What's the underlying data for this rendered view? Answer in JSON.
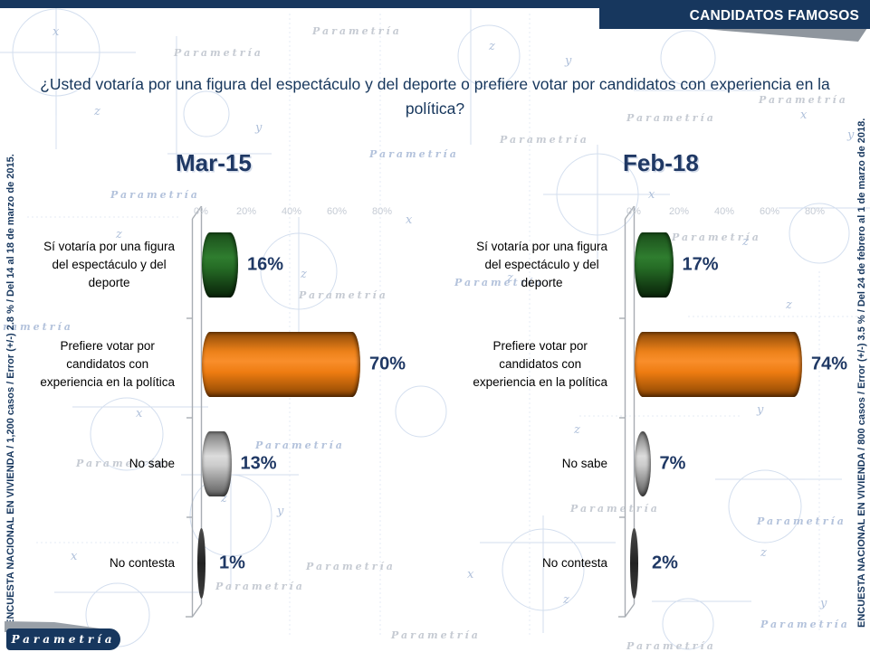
{
  "banner": {
    "label": "CANDIDATOS FAMOSOS"
  },
  "title": "¿Usted votaría por una figura del espectáculo y del deporte o prefiere votar por candidatos con experiencia en la política?",
  "logo": "Parametría",
  "watermark": "Parametría",
  "watermark_letters": [
    "x",
    "y",
    "z"
  ],
  "colors": {
    "navy": "#17375e",
    "value_label": "#1f3864",
    "tick_label": "#c5cbd4"
  },
  "chart_data": [
    {
      "type": "bar",
      "orientation": "horizontal",
      "title": "Mar-15",
      "categories": [
        "Sí votaría por una figura del espectáculo y del deporte",
        "Prefiere votar por candidatos con experiencia en la política",
        "No sabe",
        "No contesta"
      ],
      "categories_display": [
        "Sí votaría por una figura\ndel espectáculo y del\ndeporte",
        "Prefiere votar por\ncandidatos con\nexperiencia en la política",
        "No sabe",
        "No contesta"
      ],
      "values": [
        16,
        70,
        13,
        1
      ],
      "value_labels": [
        "16%",
        "70%",
        "13%",
        "1%"
      ],
      "bar_colors": [
        "#1e7a1e",
        "#f5821e",
        "#bdbdbd",
        "#333333"
      ],
      "x_ticks": [
        "0%",
        "20%",
        "40%",
        "60%",
        "80%"
      ],
      "xlim": [
        0,
        100
      ],
      "grid": false,
      "legend": "none",
      "survey_note": "ENCUESTA NACIONAL EN VIVIENDA / 1,200 casos / Error (+/-) 2.8 % / Del 14 al 18 de marzo de 2015."
    },
    {
      "type": "bar",
      "orientation": "horizontal",
      "title": "Feb-18",
      "categories": [
        "Sí votaría por una figura del espectáculo y del deporte",
        "Prefiere votar por candidatos con experiencia en la política",
        "No sabe",
        "No contesta"
      ],
      "categories_display": [
        "Sí votaría por una figura\ndel espectáculo y del\ndeporte",
        "Prefiere votar por\ncandidatos con\nexperiencia en la política",
        "No sabe",
        "No contesta"
      ],
      "values": [
        17,
        74,
        7,
        2
      ],
      "value_labels": [
        "17%",
        "74%",
        "7%",
        "2%"
      ],
      "bar_colors": [
        "#1e7a1e",
        "#f5821e",
        "#bdbdbd",
        "#333333"
      ],
      "x_ticks": [
        "0%",
        "20%",
        "40%",
        "60%",
        "80%"
      ],
      "xlim": [
        0,
        100
      ],
      "grid": false,
      "legend": "none",
      "survey_note": "ENCUESTA NACIONAL EN VIVIENDA / 800 casos / Error (+/-) 3.5 % / Del 24 de febrero  al 1 de marzo de 2018."
    }
  ]
}
